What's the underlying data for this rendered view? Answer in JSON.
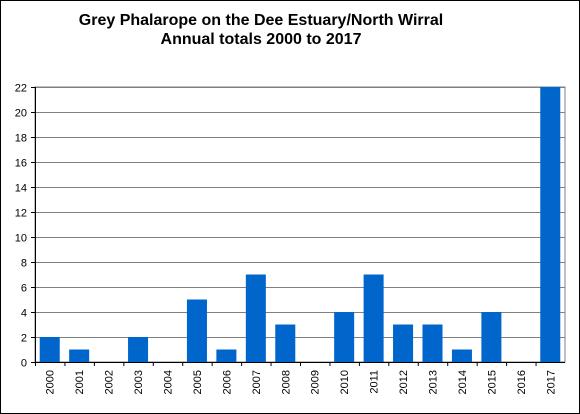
{
  "chart_data": {
    "type": "bar",
    "title_lines": [
      "Grey Phalarope on the Dee Estuary/North Wirral",
      "Annual totals 2000 to 2017"
    ],
    "xlabel": "",
    "ylabel": "",
    "categories": [
      "2000",
      "2001",
      "2002",
      "2003",
      "2004",
      "2005",
      "2006",
      "2007",
      "2008",
      "2009",
      "2010",
      "2011",
      "2012",
      "2013",
      "2014",
      "2015",
      "2016",
      "2017"
    ],
    "values": [
      2,
      1,
      0,
      2,
      0,
      5,
      1,
      7,
      3,
      0,
      4,
      7,
      3,
      3,
      1,
      4,
      0,
      22
    ],
    "ylim": [
      0,
      22
    ],
    "yticks": [
      0,
      2,
      4,
      6,
      8,
      10,
      12,
      14,
      16,
      18,
      20,
      22
    ],
    "grid": true,
    "legend": "none",
    "bar_color": "#0066CC"
  }
}
